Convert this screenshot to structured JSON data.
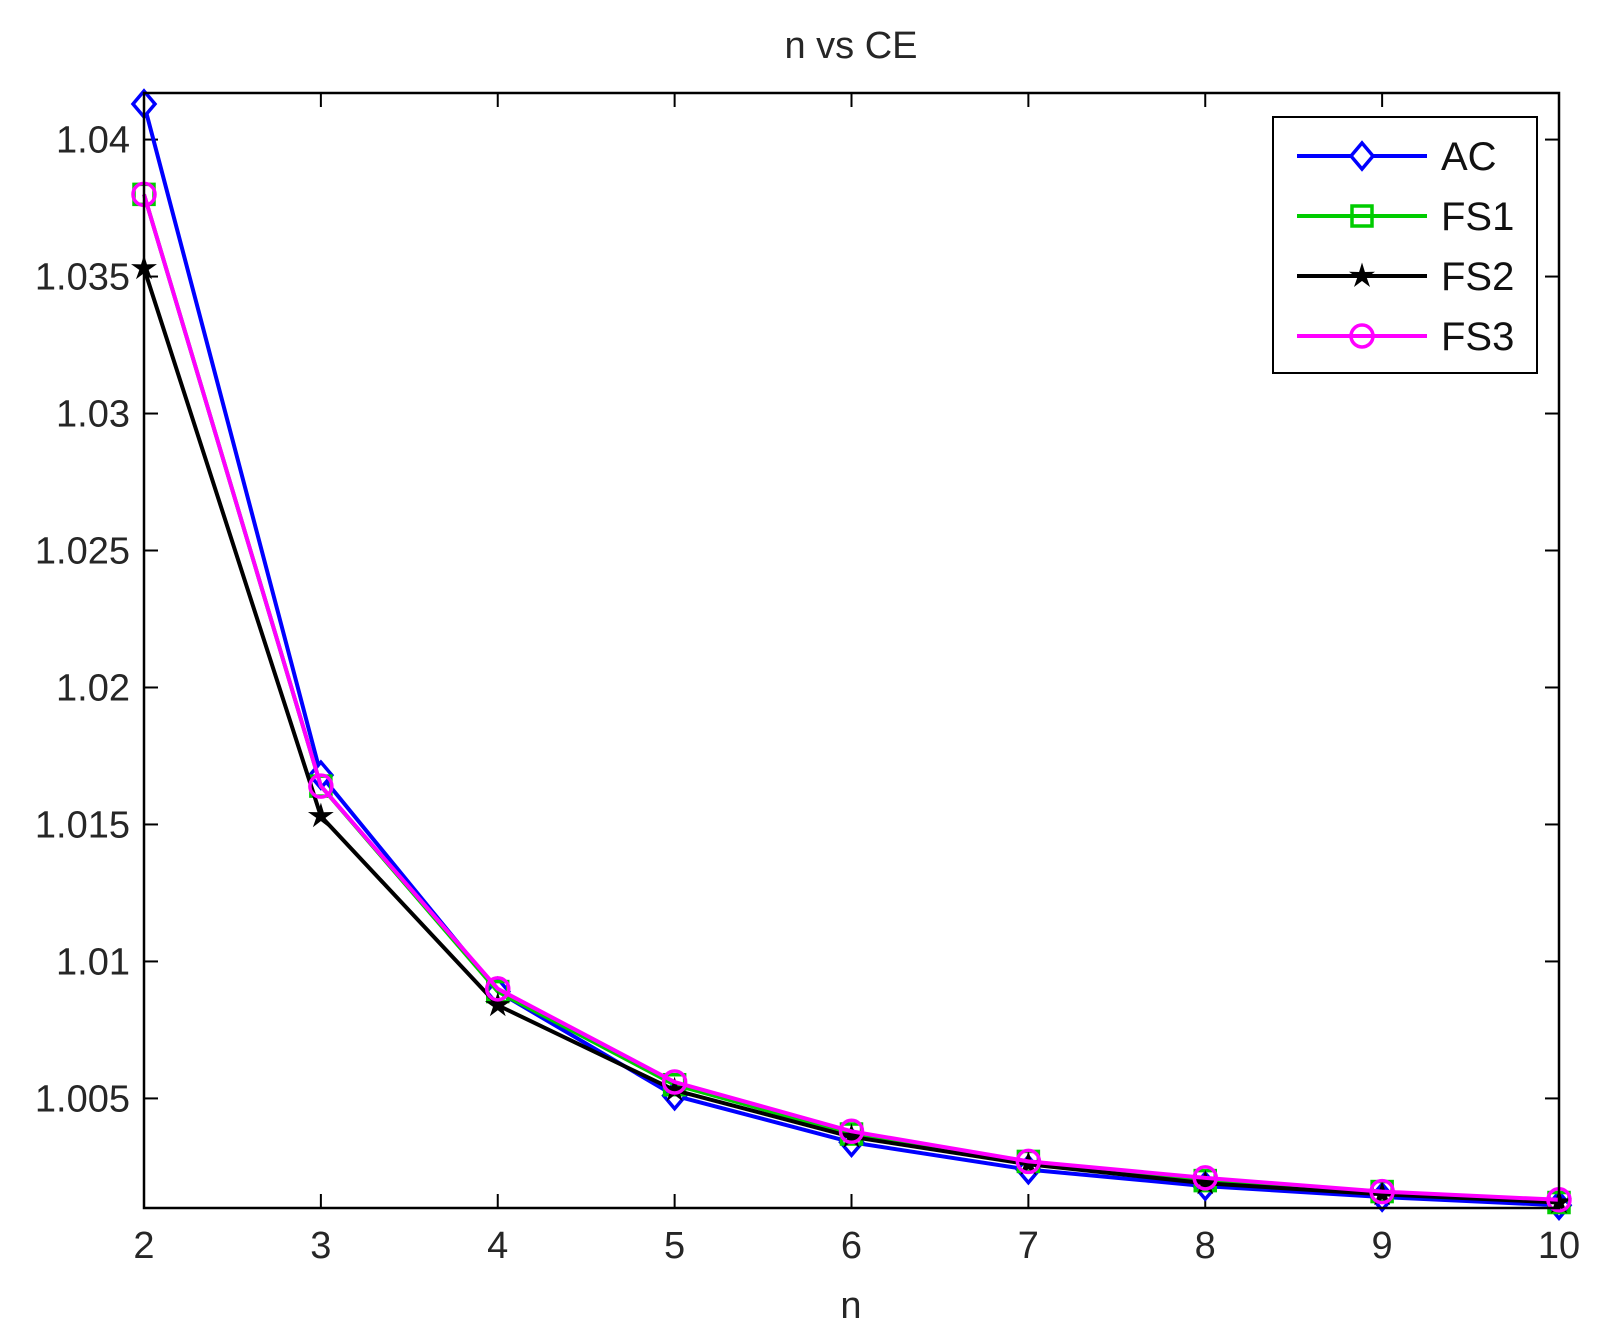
{
  "chart_data": {
    "type": "line",
    "title": "n vs CE",
    "xlabel": "n",
    "ylabel": "",
    "x": [
      2,
      3,
      4,
      5,
      6,
      7,
      8,
      9,
      10
    ],
    "xlim": [
      2,
      10
    ],
    "ylim": [
      1.001,
      1.0417
    ],
    "xticks": [
      2,
      3,
      4,
      5,
      6,
      7,
      8,
      9,
      10
    ],
    "yticks": [
      1.005,
      1.01,
      1.015,
      1.02,
      1.025,
      1.03,
      1.035,
      1.04
    ],
    "ytick_labels": [
      "1.005",
      "1.01",
      "1.015",
      "1.02",
      "1.025",
      "1.03",
      "1.035",
      "1.04"
    ],
    "grid": false,
    "legend_position": "top-right",
    "series": [
      {
        "name": "AC",
        "color": "#0000ff",
        "marker": "diamond",
        "values": [
          1.0413,
          1.0168,
          1.0089,
          1.0051,
          1.0034,
          1.0024,
          1.0018,
          1.0014,
          1.0011
        ]
      },
      {
        "name": "FS1",
        "color": "#00cc00",
        "marker": "square",
        "values": [
          1.038,
          1.0164,
          1.0089,
          1.0055,
          1.0037,
          1.0027,
          1.002,
          1.0016,
          1.0012
        ]
      },
      {
        "name": "FS2",
        "color": "#000000",
        "marker": "star",
        "values": [
          1.0353,
          1.0153,
          1.0084,
          1.0053,
          1.0036,
          1.0026,
          1.0019,
          1.0015,
          1.0012
        ]
      },
      {
        "name": "FS3",
        "color": "#ff00ff",
        "marker": "circle",
        "values": [
          1.038,
          1.0164,
          1.009,
          1.0056,
          1.0038,
          1.0027,
          1.0021,
          1.0016,
          1.0013
        ]
      }
    ]
  }
}
